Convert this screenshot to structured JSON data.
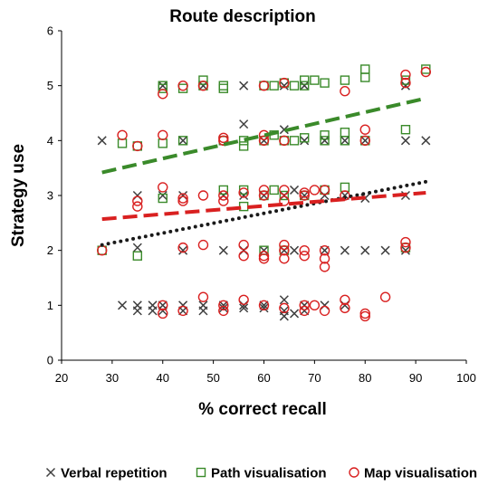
{
  "chart_data": {
    "type": "scatter",
    "title": "Route description",
    "xlabel": "% correct recall",
    "ylabel": "Strategy use",
    "xlim": [
      20,
      100
    ],
    "ylim": [
      0,
      6
    ],
    "xticks": [
      20,
      30,
      40,
      50,
      60,
      70,
      80,
      90,
      100
    ],
    "yticks": [
      0,
      1,
      2,
      3,
      4,
      5,
      6
    ],
    "grid": false,
    "legend_position": "bottom",
    "series": [
      {
        "name": "Verbal repetition",
        "marker": "x",
        "color": "#404040",
        "trendline": {
          "style": "dotted",
          "color": "#1a1a1a",
          "from": [
            28,
            2.1
          ],
          "to": [
            92,
            3.25
          ]
        },
        "points": [
          [
            28,
            4
          ],
          [
            32,
            1
          ],
          [
            35,
            1
          ],
          [
            35,
            0.9
          ],
          [
            35,
            3
          ],
          [
            35,
            2.05
          ],
          [
            38,
            1
          ],
          [
            38,
            0.9
          ],
          [
            40,
            1
          ],
          [
            40,
            0.9
          ],
          [
            40,
            5
          ],
          [
            40,
            3
          ],
          [
            44,
            0.9
          ],
          [
            44,
            1
          ],
          [
            44,
            4
          ],
          [
            44,
            2
          ],
          [
            44,
            3
          ],
          [
            48,
            1
          ],
          [
            48,
            0.9
          ],
          [
            48,
            5
          ],
          [
            52,
            1
          ],
          [
            52,
            0.95
          ],
          [
            52,
            3
          ],
          [
            52,
            2
          ],
          [
            56,
            1
          ],
          [
            56,
            0.95
          ],
          [
            56,
            4.3
          ],
          [
            56,
            5
          ],
          [
            56,
            3
          ],
          [
            56,
            2
          ],
          [
            60,
            1
          ],
          [
            60,
            0.95
          ],
          [
            60,
            4
          ],
          [
            60,
            2
          ],
          [
            60,
            3
          ],
          [
            64,
            0.9
          ],
          [
            64,
            1.1
          ],
          [
            64,
            0.8
          ],
          [
            64,
            4.2
          ],
          [
            64,
            3
          ],
          [
            64,
            2
          ],
          [
            64,
            5
          ],
          [
            66,
            0.85
          ],
          [
            66,
            3.1
          ],
          [
            66,
            2
          ],
          [
            68,
            1
          ],
          [
            68,
            0.9
          ],
          [
            68,
            4
          ],
          [
            68,
            3
          ],
          [
            68,
            5
          ],
          [
            72,
            1
          ],
          [
            72,
            4
          ],
          [
            72,
            3
          ],
          [
            72,
            2
          ],
          [
            76,
            1
          ],
          [
            76,
            4
          ],
          [
            76,
            3
          ],
          [
            76,
            2
          ],
          [
            80,
            2
          ],
          [
            80,
            4
          ],
          [
            80,
            2.95
          ],
          [
            84,
            2
          ],
          [
            88,
            5
          ],
          [
            88,
            4
          ],
          [
            88,
            3
          ],
          [
            88,
            2
          ],
          [
            92,
            4
          ]
        ]
      },
      {
        "name": "Path visualisation",
        "marker": "square",
        "color": "#3a8a2a",
        "trendline": {
          "style": "dashed",
          "color": "#3a8a2a",
          "from": [
            28,
            3.42
          ],
          "to": [
            92,
            4.77
          ]
        },
        "points": [
          [
            28,
            2
          ],
          [
            32,
            3.95
          ],
          [
            35,
            3.9
          ],
          [
            35,
            1.9
          ],
          [
            40,
            5
          ],
          [
            40,
            4.95
          ],
          [
            40,
            3.95
          ],
          [
            40,
            2.95
          ],
          [
            44,
            4.95
          ],
          [
            44,
            4
          ],
          [
            48,
            5
          ],
          [
            48,
            5.1
          ],
          [
            52,
            4.95
          ],
          [
            52,
            5
          ],
          [
            52,
            4
          ],
          [
            52,
            3.1
          ],
          [
            56,
            4
          ],
          [
            56,
            3.9
          ],
          [
            56,
            3.1
          ],
          [
            56,
            2.8
          ],
          [
            60,
            5
          ],
          [
            60,
            4
          ],
          [
            60,
            3
          ],
          [
            60,
            2
          ],
          [
            62,
            5
          ],
          [
            62,
            4.1
          ],
          [
            62,
            3.1
          ],
          [
            64,
            5.05
          ],
          [
            64,
            4
          ],
          [
            64,
            3
          ],
          [
            64,
            2
          ],
          [
            66,
            5
          ],
          [
            66,
            4
          ],
          [
            68,
            5.1
          ],
          [
            68,
            5
          ],
          [
            68,
            4.05
          ],
          [
            68,
            3
          ],
          [
            70,
            5.1
          ],
          [
            72,
            5.05
          ],
          [
            72,
            4.1
          ],
          [
            72,
            4
          ],
          [
            72,
            3.1
          ],
          [
            76,
            5.1
          ],
          [
            76,
            4.15
          ],
          [
            76,
            4
          ],
          [
            76,
            3.15
          ],
          [
            80,
            5.3
          ],
          [
            80,
            5.15
          ],
          [
            80,
            4
          ],
          [
            88,
            5.1
          ],
          [
            88,
            4.2
          ],
          [
            88,
            2.05
          ],
          [
            92,
            5.3
          ]
        ]
      },
      {
        "name": "Map visualisation",
        "marker": "circle",
        "color": "#d92020",
        "trendline": {
          "style": "dashed",
          "color": "#d92020",
          "from": [
            28,
            2.57
          ],
          "to": [
            92,
            3.05
          ]
        },
        "points": [
          [
            28,
            2
          ],
          [
            32,
            4.1
          ],
          [
            35,
            2.9
          ],
          [
            35,
            2.8
          ],
          [
            35,
            3.9
          ],
          [
            40,
            4.1
          ],
          [
            40,
            4.85
          ],
          [
            40,
            3.15
          ],
          [
            40,
            1
          ],
          [
            40,
            0.85
          ],
          [
            44,
            5
          ],
          [
            44,
            2.95
          ],
          [
            44,
            2.9
          ],
          [
            44,
            0.9
          ],
          [
            44,
            2.05
          ],
          [
            48,
            3
          ],
          [
            48,
            2.1
          ],
          [
            48,
            1.15
          ],
          [
            48,
            5
          ],
          [
            52,
            4.05
          ],
          [
            52,
            4
          ],
          [
            52,
            3
          ],
          [
            52,
            2.9
          ],
          [
            52,
            1
          ],
          [
            52,
            0.9
          ],
          [
            56,
            3.05
          ],
          [
            56,
            2.1
          ],
          [
            56,
            1.9
          ],
          [
            56,
            1.1
          ],
          [
            60,
            4.1
          ],
          [
            60,
            4
          ],
          [
            60,
            3.1
          ],
          [
            60,
            3
          ],
          [
            60,
            1.85
          ],
          [
            60,
            1.9
          ],
          [
            60,
            5
          ],
          [
            60,
            1
          ],
          [
            64,
            5.05
          ],
          [
            64,
            4
          ],
          [
            64,
            3.1
          ],
          [
            64,
            2.9
          ],
          [
            64,
            2.1
          ],
          [
            64,
            2
          ],
          [
            64,
            1.85
          ],
          [
            64,
            0.95
          ],
          [
            68,
            3.05
          ],
          [
            68,
            3
          ],
          [
            68,
            2
          ],
          [
            68,
            1.9
          ],
          [
            68,
            1
          ],
          [
            68,
            0.9
          ],
          [
            70,
            3.1
          ],
          [
            70,
            1
          ],
          [
            72,
            3.1
          ],
          [
            72,
            2
          ],
          [
            72,
            1.85
          ],
          [
            72,
            1.7
          ],
          [
            72,
            0.9
          ],
          [
            76,
            4.9
          ],
          [
            76,
            3
          ],
          [
            76,
            1.1
          ],
          [
            76,
            0.95
          ],
          [
            80,
            4.2
          ],
          [
            80,
            4
          ],
          [
            80,
            0.85
          ],
          [
            80,
            0.8
          ],
          [
            84,
            1.15
          ],
          [
            88,
            5.2
          ],
          [
            88,
            5.05
          ],
          [
            88,
            2.15
          ],
          [
            88,
            2.05
          ],
          [
            92,
            5.25
          ]
        ]
      }
    ]
  }
}
